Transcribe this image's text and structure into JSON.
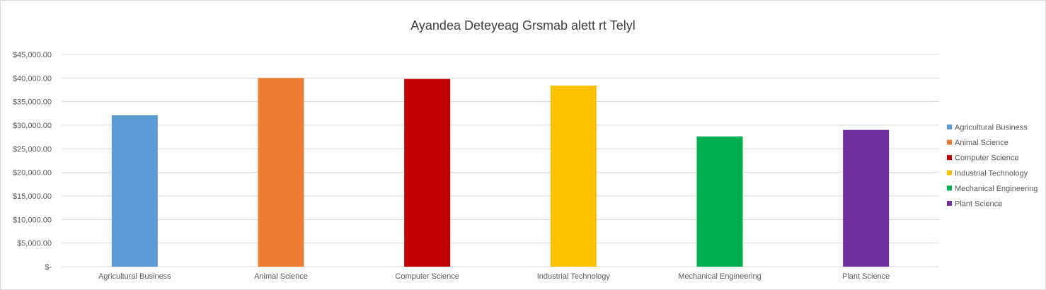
{
  "chart_data": {
    "type": "bar",
    "title": "Ayandea Deteyeag Grsmab alett rt Telyl",
    "categories": [
      "Agricultural Business",
      "Animal Science",
      "Computer Science",
      "Industrial Technology",
      "Mechanical Engineering",
      "Plant Science"
    ],
    "values": [
      32100,
      40000,
      39800,
      38400,
      27600,
      29000
    ],
    "colors": [
      "#5B9BD5",
      "#ED7D31",
      "#C00000",
      "#FFC000",
      "#00B050",
      "#7030A0"
    ],
    "ylim": [
      0,
      45000
    ],
    "yticks": [
      0,
      5000,
      10000,
      15000,
      20000,
      25000,
      30000,
      35000,
      40000,
      45000
    ],
    "ytick_labels": [
      "$-",
      "$5,000.00",
      "$10,000.00",
      "$15,000.00",
      "$20,000.00",
      "$25,000.00",
      "$30,000.00",
      "$35,000.00",
      "$40,000.00",
      "$45,000.00"
    ],
    "xlabel": "",
    "ylabel": "",
    "grid": true,
    "legend": {
      "position": "right",
      "entries": [
        "Agricultural Business",
        "Animal Science",
        "Computer Science",
        "Industrial Technology",
        "Mechanical Engineering",
        "Plant Science"
      ]
    }
  }
}
